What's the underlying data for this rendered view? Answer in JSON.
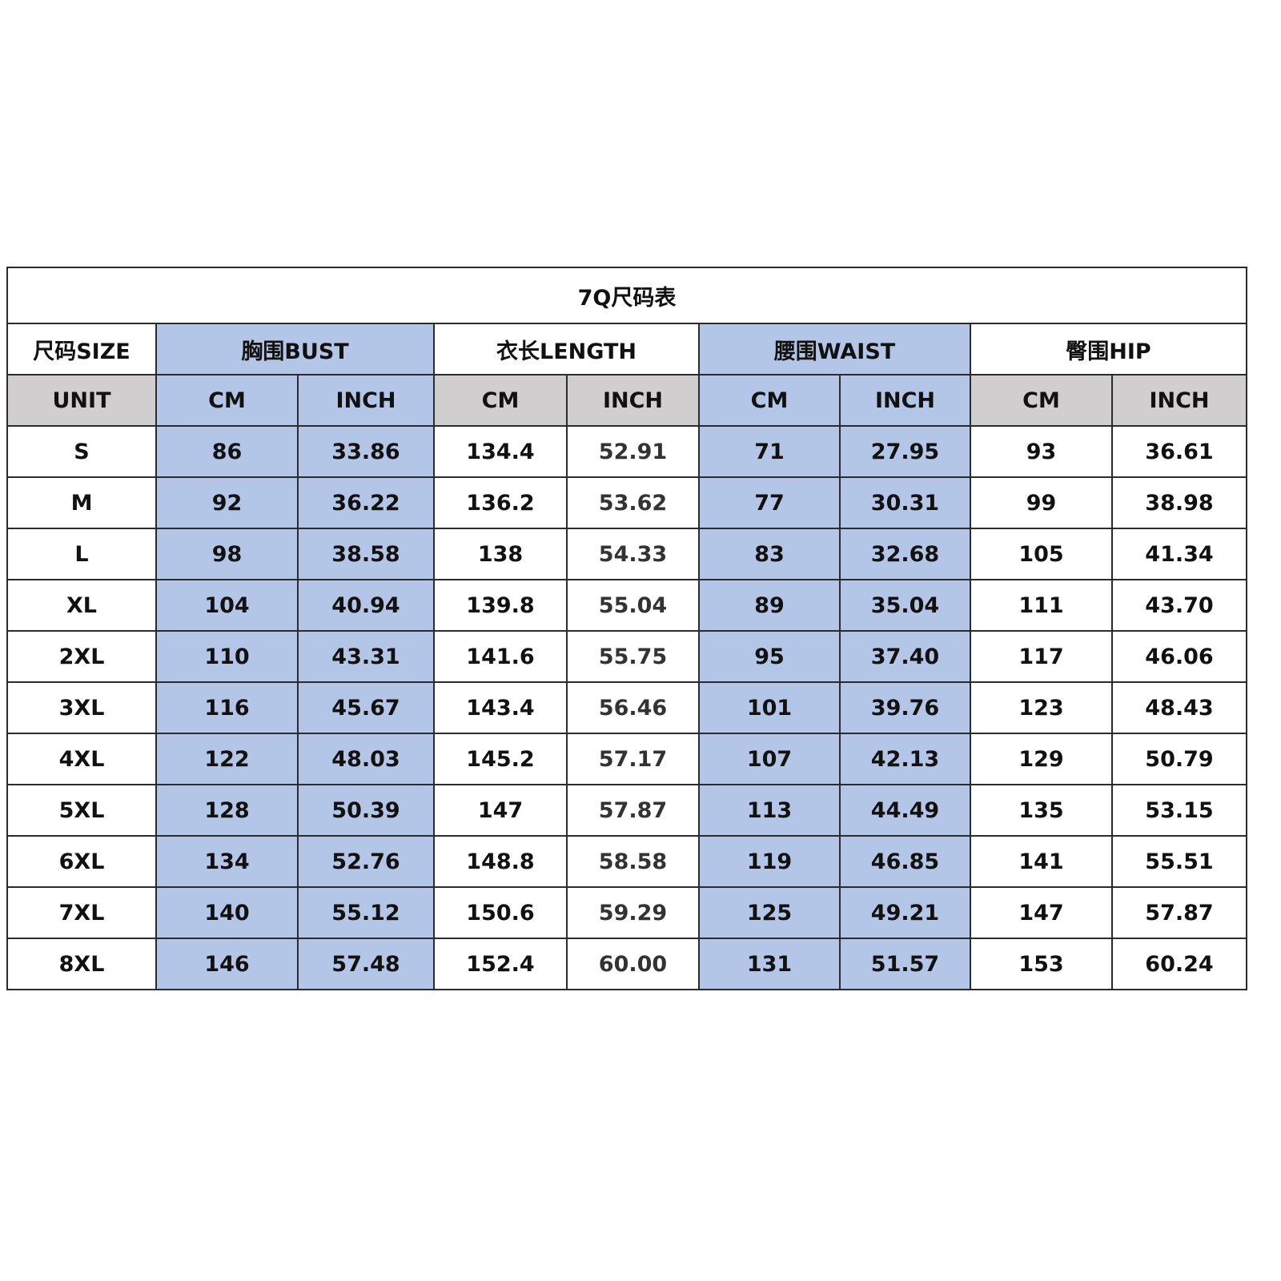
{
  "title": "7Q尺码表",
  "groups": [
    {
      "label": "尺码SIZE"
    },
    {
      "label": "胸围BUST"
    },
    {
      "label": "衣长LENGTH"
    },
    {
      "label": "腰围WAIST"
    },
    {
      "label": "臀围HIP"
    }
  ],
  "unit_row": [
    "UNIT",
    "CM",
    "INCH",
    "CM",
    "INCH",
    "CM",
    "INCH",
    "CM",
    "INCH"
  ],
  "colors": {
    "blue_fill": "#b4c6e7",
    "gray_fill": "#d0cece",
    "border": "#2b2b2b"
  },
  "rows": [
    [
      "S",
      "86",
      "33.86",
      "134.4",
      "52.91",
      "71",
      "27.95",
      "93",
      "36.61"
    ],
    [
      "M",
      "92",
      "36.22",
      "136.2",
      "53.62",
      "77",
      "30.31",
      "99",
      "38.98"
    ],
    [
      "L",
      "98",
      "38.58",
      "138",
      "54.33",
      "83",
      "32.68",
      "105",
      "41.34"
    ],
    [
      "XL",
      "104",
      "40.94",
      "139.8",
      "55.04",
      "89",
      "35.04",
      "111",
      "43.70"
    ],
    [
      "2XL",
      "110",
      "43.31",
      "141.6",
      "55.75",
      "95",
      "37.40",
      "117",
      "46.06"
    ],
    [
      "3XL",
      "116",
      "45.67",
      "143.4",
      "56.46",
      "101",
      "39.76",
      "123",
      "48.43"
    ],
    [
      "4XL",
      "122",
      "48.03",
      "145.2",
      "57.17",
      "107",
      "42.13",
      "129",
      "50.79"
    ],
    [
      "5XL",
      "128",
      "50.39",
      "147",
      "57.87",
      "113",
      "44.49",
      "135",
      "53.15"
    ],
    [
      "6XL",
      "134",
      "52.76",
      "148.8",
      "58.58",
      "119",
      "46.85",
      "141",
      "55.51"
    ],
    [
      "7XL",
      "140",
      "55.12",
      "150.6",
      "59.29",
      "125",
      "49.21",
      "147",
      "57.87"
    ],
    [
      "8XL",
      "146",
      "57.48",
      "152.4",
      "60.00",
      "131",
      "51.57",
      "153",
      "60.24"
    ]
  ]
}
